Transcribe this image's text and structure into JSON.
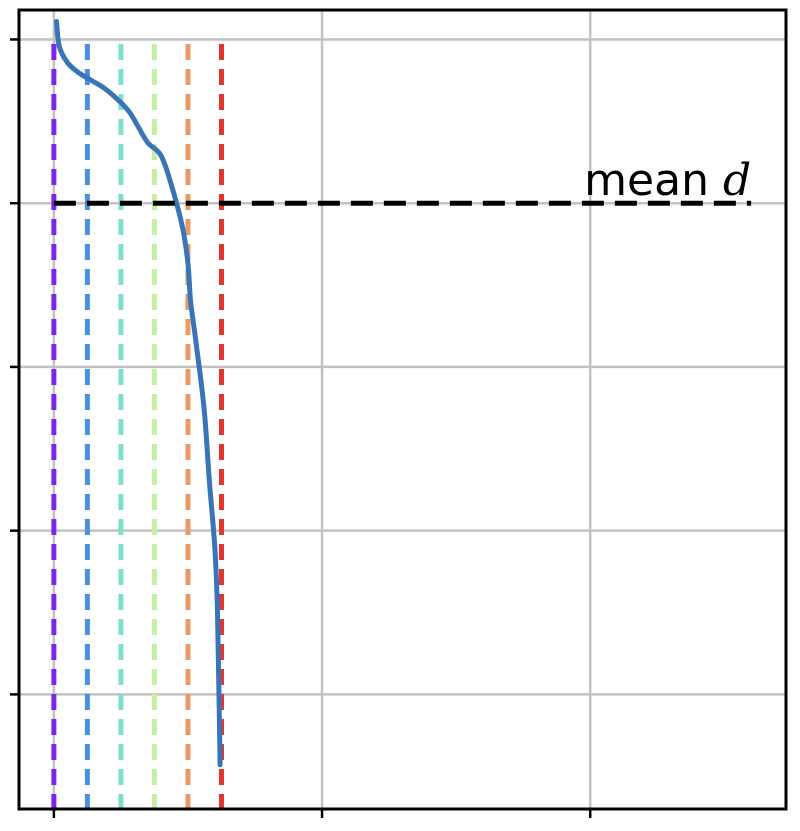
{
  "chart_data": {
    "type": "line",
    "title": "",
    "xlabel": "",
    "ylabel": "",
    "xlim": [
      -0.13,
      2.73
    ],
    "ylim": [
      0,
      4.88
    ],
    "x_ticks": [
      0,
      1,
      2
    ],
    "y_ticks": [
      0.7,
      1.7,
      2.7,
      3.7,
      4.7
    ],
    "grid": true,
    "series": [
      {
        "color": "#3a74b8",
        "x": [
          0.01,
          0.02,
          0.05,
          0.09,
          0.14,
          0.19,
          0.24,
          0.28,
          0.31,
          0.35,
          0.4,
          0.44,
          0.48,
          0.5,
          0.51,
          0.53,
          0.56,
          0.58,
          0.6,
          0.61,
          0.62
        ],
        "y": [
          4.81,
          4.66,
          4.56,
          4.5,
          4.45,
          4.4,
          4.33,
          4.26,
          4.18,
          4.07,
          3.99,
          3.8,
          3.55,
          3.33,
          3.1,
          2.85,
          2.45,
          2.0,
          1.6,
          1.2,
          0.27
        ]
      }
    ],
    "vlines": [
      {
        "x": 0.0,
        "color": "#7a27e8",
        "style": "dashed"
      },
      {
        "x": 0.125,
        "color": "#4a90e2",
        "style": "dashed"
      },
      {
        "x": 0.25,
        "color": "#7de0cf",
        "style": "dashed"
      },
      {
        "x": 0.375,
        "color": "#c4f0a4",
        "style": "dashed"
      },
      {
        "x": 0.5,
        "color": "#eb9a66",
        "style": "dashed"
      },
      {
        "x": 0.625,
        "color": "#e0362f",
        "style": "dashed"
      }
    ],
    "hline": {
      "y": 3.7,
      "x_range": [
        0.0,
        2.6
      ],
      "color": "#000000",
      "style": "dashed"
    },
    "annotations": [
      {
        "text": "mean",
        "math": "d",
        "x": 2.6,
        "y": 3.7
      }
    ]
  }
}
